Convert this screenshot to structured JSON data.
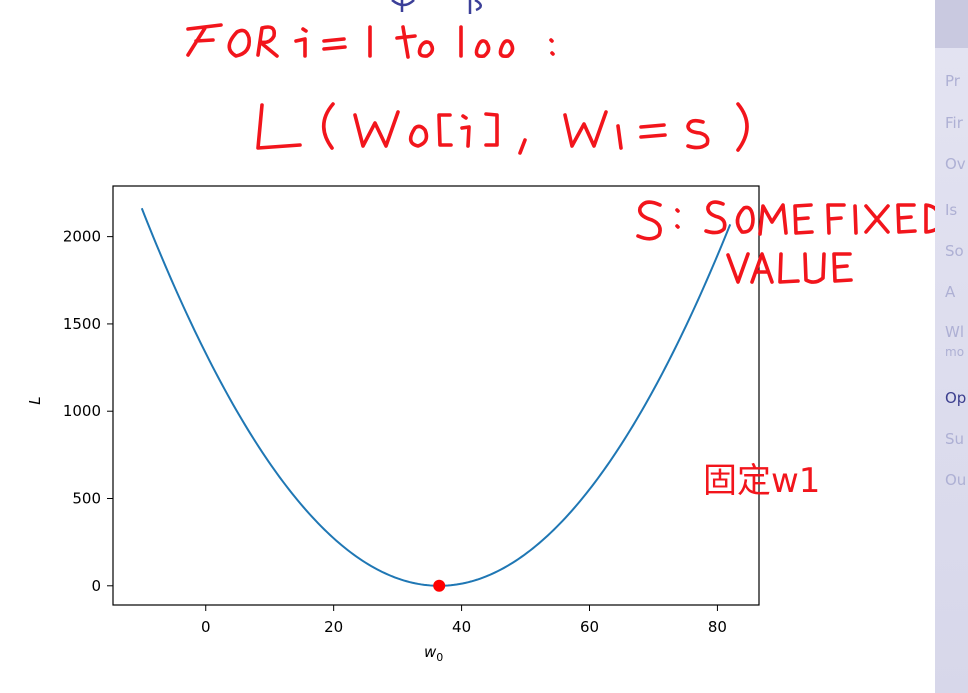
{
  "sidebar": {
    "items": [
      {
        "label": "Pr",
        "top": 72
      },
      {
        "label": "Fir",
        "top": 114
      },
      {
        "label": "Ov",
        "top": 155
      },
      {
        "label": "Is",
        "top": 201
      },
      {
        "label": "So",
        "top": 242
      },
      {
        "label": "A",
        "top": 283
      },
      {
        "label": "Wl",
        "top": 323
      },
      {
        "label": "mo",
        "top": 345,
        "small": true
      },
      {
        "label": "Op",
        "top": 389,
        "current": true
      },
      {
        "label": "Su",
        "top": 430
      },
      {
        "label": "Ou",
        "top": 471
      }
    ]
  },
  "annotations": {
    "line1": "FOR i = 1 to 100 :",
    "line2": "L ( W0[i] , W1 = S )",
    "line3": "S: SOME FIXED VALUE",
    "note_cn": "固定w1"
  },
  "colors": {
    "curve": "#1f77b4",
    "min_point": "#ff0000",
    "ink": "#f2151c",
    "title_fragment": "#3b3f98"
  },
  "chart_data": {
    "type": "line",
    "x_label": "w_0",
    "y_label": "L",
    "xlim": [
      -14.5,
      86.5
    ],
    "ylim": [
      -110,
      2290
    ],
    "x_ticks": [
      0,
      20,
      40,
      60,
      80
    ],
    "y_ticks": [
      0,
      500,
      1000,
      1500,
      2000
    ],
    "grid": false,
    "series": [
      {
        "x_range": [
          -10,
          82
        ],
        "formula": "L = 1.0 * (w0 - 36.5)^2",
        "min_x": 36.5,
        "min_y": 0
      }
    ],
    "highlight_point": {
      "x": 36.5,
      "y": 0
    }
  }
}
